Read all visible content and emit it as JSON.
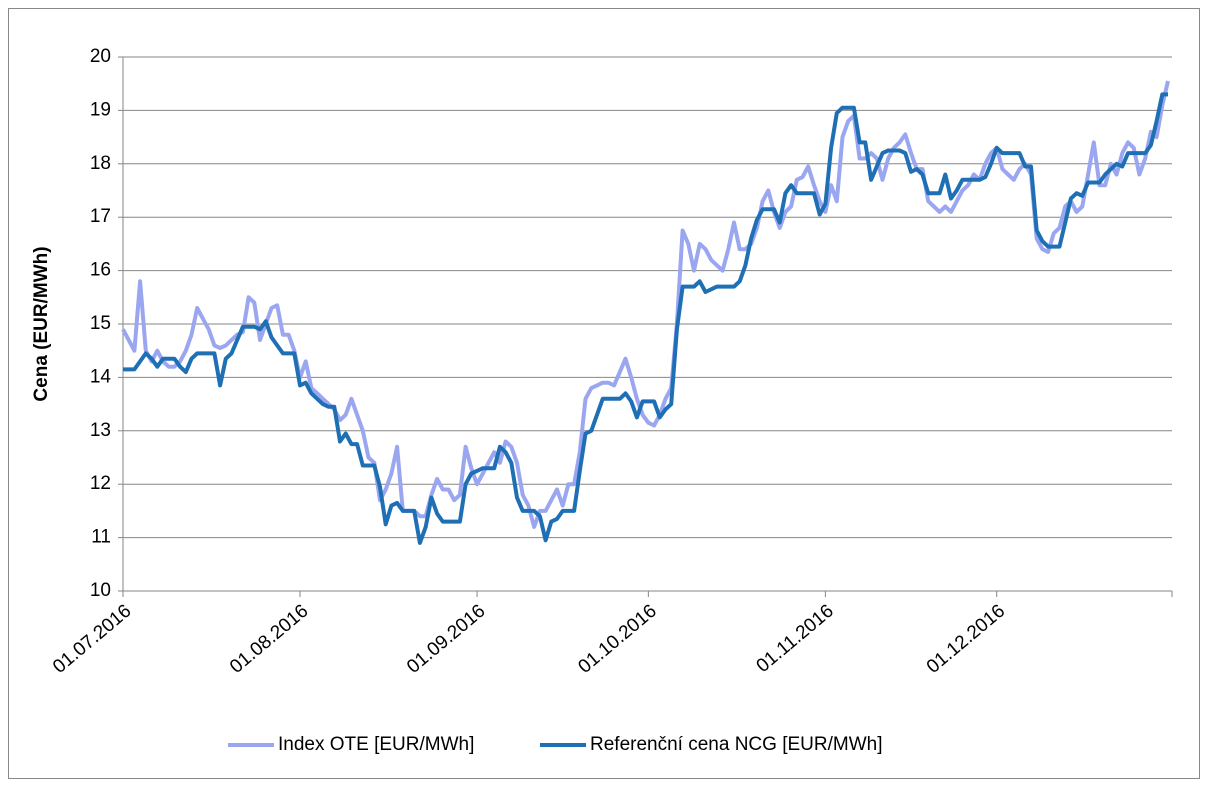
{
  "chart_data": {
    "type": "line",
    "y_label": "Cena (EUR/MWh)",
    "x": [
      "01.07.2016",
      "02.07.2016",
      "03.07.2016",
      "04.07.2016",
      "05.07.2016",
      "06.07.2016",
      "07.07.2016",
      "08.07.2016",
      "09.07.2016",
      "10.07.2016",
      "11.07.2016",
      "12.07.2016",
      "13.07.2016",
      "14.07.2016",
      "15.07.2016",
      "16.07.2016",
      "17.07.2016",
      "18.07.2016",
      "19.07.2016",
      "20.07.2016",
      "21.07.2016",
      "22.07.2016",
      "23.07.2016",
      "24.07.2016",
      "25.07.2016",
      "26.07.2016",
      "27.07.2016",
      "28.07.2016",
      "29.07.2016",
      "30.07.2016",
      "31.07.2016",
      "01.08.2016",
      "02.08.2016",
      "03.08.2016",
      "04.08.2016",
      "05.08.2016",
      "06.08.2016",
      "07.08.2016",
      "08.08.2016",
      "09.08.2016",
      "10.08.2016",
      "11.08.2016",
      "12.08.2016",
      "13.08.2016",
      "14.08.2016",
      "15.08.2016",
      "16.08.2016",
      "17.08.2016",
      "18.08.2016",
      "19.08.2016",
      "20.08.2016",
      "21.08.2016",
      "22.08.2016",
      "23.08.2016",
      "24.08.2016",
      "25.08.2016",
      "26.08.2016",
      "27.08.2016",
      "28.08.2016",
      "29.08.2016",
      "30.08.2016",
      "31.08.2016",
      "01.09.2016",
      "02.09.2016",
      "03.09.2016",
      "04.09.2016",
      "05.09.2016",
      "06.09.2016",
      "07.09.2016",
      "08.09.2016",
      "09.09.2016",
      "10.09.2016",
      "11.09.2016",
      "12.09.2016",
      "13.09.2016",
      "14.09.2016",
      "15.09.2016",
      "16.09.2016",
      "17.09.2016",
      "18.09.2016",
      "19.09.2016",
      "20.09.2016",
      "21.09.2016",
      "22.09.2016",
      "23.09.2016",
      "24.09.2016",
      "25.09.2016",
      "26.09.2016",
      "27.09.2016",
      "28.09.2016",
      "29.09.2016",
      "30.09.2016",
      "01.10.2016",
      "02.10.2016",
      "03.10.2016",
      "04.10.2016",
      "05.10.2016",
      "06.10.2016",
      "07.10.2016",
      "08.10.2016",
      "09.10.2016",
      "10.10.2016",
      "11.10.2016",
      "12.10.2016",
      "13.10.2016",
      "14.10.2016",
      "15.10.2016",
      "16.10.2016",
      "17.10.2016",
      "18.10.2016",
      "19.10.2016",
      "20.10.2016",
      "21.10.2016",
      "22.10.2016",
      "23.10.2016",
      "24.10.2016",
      "25.10.2016",
      "26.10.2016",
      "27.10.2016",
      "28.10.2016",
      "29.10.2016",
      "30.10.2016",
      "31.10.2016",
      "01.11.2016",
      "02.11.2016",
      "03.11.2016",
      "04.11.2016",
      "05.11.2016",
      "06.11.2016",
      "07.11.2016",
      "08.11.2016",
      "09.11.2016",
      "10.11.2016",
      "11.11.2016",
      "12.11.2016",
      "13.11.2016",
      "14.11.2016",
      "15.11.2016",
      "16.11.2016",
      "17.11.2016",
      "18.11.2016",
      "19.11.2016",
      "20.11.2016",
      "21.11.2016",
      "22.11.2016",
      "23.11.2016",
      "24.11.2016",
      "25.11.2016",
      "26.11.2016",
      "27.11.2016",
      "28.11.2016",
      "29.11.2016",
      "30.11.2016",
      "01.12.2016",
      "02.12.2016",
      "03.12.2016",
      "04.12.2016",
      "05.12.2016",
      "06.12.2016",
      "07.12.2016",
      "08.12.2016",
      "09.12.2016",
      "10.12.2016",
      "11.12.2016",
      "12.12.2016",
      "13.12.2016",
      "14.12.2016",
      "15.12.2016",
      "16.12.2016",
      "17.12.2016",
      "18.12.2016",
      "19.12.2016",
      "20.12.2016",
      "21.12.2016",
      "22.12.2016",
      "23.12.2016",
      "24.12.2016",
      "25.12.2016",
      "26.12.2016",
      "27.12.2016",
      "28.12.2016",
      "29.12.2016",
      "30.12.2016",
      "31.12.2016"
    ],
    "series": [
      {
        "name": "Index OTE [EUR/MWh]",
        "color": "#9aa6f0",
        "values": [
          14.9,
          14.7,
          14.5,
          15.8,
          14.5,
          14.3,
          14.5,
          14.3,
          14.2,
          14.2,
          14.3,
          14.5,
          14.8,
          15.3,
          15.1,
          14.9,
          14.6,
          14.55,
          14.6,
          14.7,
          14.8,
          14.85,
          15.5,
          15.4,
          14.7,
          15.0,
          15.3,
          15.35,
          14.8,
          14.8,
          14.5,
          14.0,
          14.3,
          13.8,
          13.7,
          13.6,
          13.5,
          13.4,
          13.2,
          13.3,
          13.6,
          13.3,
          13.0,
          12.5,
          12.4,
          11.7,
          11.9,
          12.2,
          12.7,
          11.5,
          11.5,
          11.5,
          11.4,
          11.4,
          11.8,
          12.1,
          11.9,
          11.9,
          11.7,
          11.8,
          12.7,
          12.3,
          12.0,
          12.2,
          12.4,
          12.6,
          12.4,
          12.8,
          12.7,
          12.4,
          11.8,
          11.6,
          11.2,
          11.5,
          11.5,
          11.7,
          11.9,
          11.6,
          12.0,
          12.0,
          12.6,
          13.6,
          13.8,
          13.85,
          13.9,
          13.9,
          13.85,
          14.1,
          14.35,
          14.0,
          13.6,
          13.3,
          13.15,
          13.1,
          13.3,
          13.6,
          13.8,
          15.0,
          16.75,
          16.5,
          16.0,
          16.5,
          16.4,
          16.2,
          16.1,
          16.0,
          16.4,
          16.9,
          16.4,
          16.4,
          16.5,
          16.8,
          17.3,
          17.5,
          17.1,
          16.8,
          17.1,
          17.2,
          17.7,
          17.75,
          17.95,
          17.6,
          17.3,
          17.1,
          17.6,
          17.3,
          18.5,
          18.8,
          18.9,
          18.1,
          18.1,
          18.2,
          18.1,
          17.7,
          18.1,
          18.3,
          18.4,
          18.55,
          18.2,
          17.9,
          17.9,
          17.3,
          17.2,
          17.1,
          17.2,
          17.1,
          17.3,
          17.5,
          17.6,
          17.8,
          17.7,
          18.0,
          18.2,
          18.3,
          17.9,
          17.8,
          17.7,
          17.9,
          18.0,
          17.8,
          16.6,
          16.4,
          16.35,
          16.7,
          16.8,
          17.2,
          17.3,
          17.1,
          17.2,
          17.8,
          18.4,
          17.6,
          17.6,
          18.0,
          17.8,
          18.2,
          18.4,
          18.3,
          17.8,
          18.1,
          18.6,
          18.5,
          19.1,
          19.55
        ]
      },
      {
        "name": "Referenční cena NCG [EUR/MWh]",
        "color": "#1f6fb5",
        "values": [
          14.15,
          14.15,
          14.15,
          14.3,
          14.45,
          14.35,
          14.2,
          14.35,
          14.35,
          14.35,
          14.2,
          14.1,
          14.35,
          14.45,
          14.45,
          14.45,
          14.45,
          13.85,
          14.35,
          14.45,
          14.7,
          14.95,
          14.95,
          14.95,
          14.9,
          15.05,
          14.75,
          14.6,
          14.45,
          14.45,
          14.45,
          13.85,
          13.9,
          13.7,
          13.6,
          13.5,
          13.45,
          13.45,
          12.8,
          12.95,
          12.75,
          12.75,
          12.35,
          12.35,
          12.35,
          11.95,
          11.25,
          11.6,
          11.65,
          11.5,
          11.5,
          11.5,
          10.9,
          11.2,
          11.75,
          11.45,
          11.3,
          11.3,
          11.3,
          11.3,
          12.0,
          12.2,
          12.25,
          12.3,
          12.3,
          12.3,
          12.7,
          12.6,
          12.4,
          11.75,
          11.5,
          11.5,
          11.5,
          11.4,
          10.95,
          11.3,
          11.35,
          11.5,
          11.5,
          11.5,
          12.25,
          12.95,
          13.0,
          13.3,
          13.6,
          13.6,
          13.6,
          13.6,
          13.7,
          13.55,
          13.25,
          13.55,
          13.55,
          13.55,
          13.25,
          13.4,
          13.5,
          14.9,
          15.7,
          15.7,
          15.7,
          15.8,
          15.6,
          15.65,
          15.7,
          15.7,
          15.7,
          15.7,
          15.8,
          16.1,
          16.6,
          16.95,
          17.15,
          17.15,
          17.15,
          16.9,
          17.45,
          17.6,
          17.45,
          17.45,
          17.45,
          17.45,
          17.05,
          17.25,
          18.3,
          18.95,
          19.05,
          19.05,
          19.05,
          18.4,
          18.4,
          17.7,
          17.95,
          18.2,
          18.25,
          18.25,
          18.25,
          18.2,
          17.85,
          17.9,
          17.8,
          17.45,
          17.45,
          17.45,
          17.8,
          17.35,
          17.5,
          17.7,
          17.7,
          17.7,
          17.7,
          17.75,
          18.0,
          18.3,
          18.2,
          18.2,
          18.2,
          18.2,
          17.95,
          17.95,
          16.75,
          16.55,
          16.45,
          16.45,
          16.45,
          16.9,
          17.35,
          17.45,
          17.4,
          17.65,
          17.65,
          17.65,
          17.8,
          17.9,
          18.0,
          17.95,
          18.2,
          18.2,
          18.2,
          18.2,
          18.35,
          18.8,
          19.3,
          19.3
        ]
      }
    ],
    "xlim": [
      "01.07.2016",
      "31.12.2016"
    ],
    "xticks": [
      "01.07.2016",
      "01.08.2016",
      "01.09.2016",
      "01.10.2016",
      "01.11.2016",
      "01.12.2016"
    ],
    "ylim": [
      10,
      20
    ],
    "yticks": [
      10,
      11,
      12,
      13,
      14,
      15,
      16,
      17,
      18,
      19,
      20
    ],
    "grid": true,
    "legend": "bottom"
  }
}
